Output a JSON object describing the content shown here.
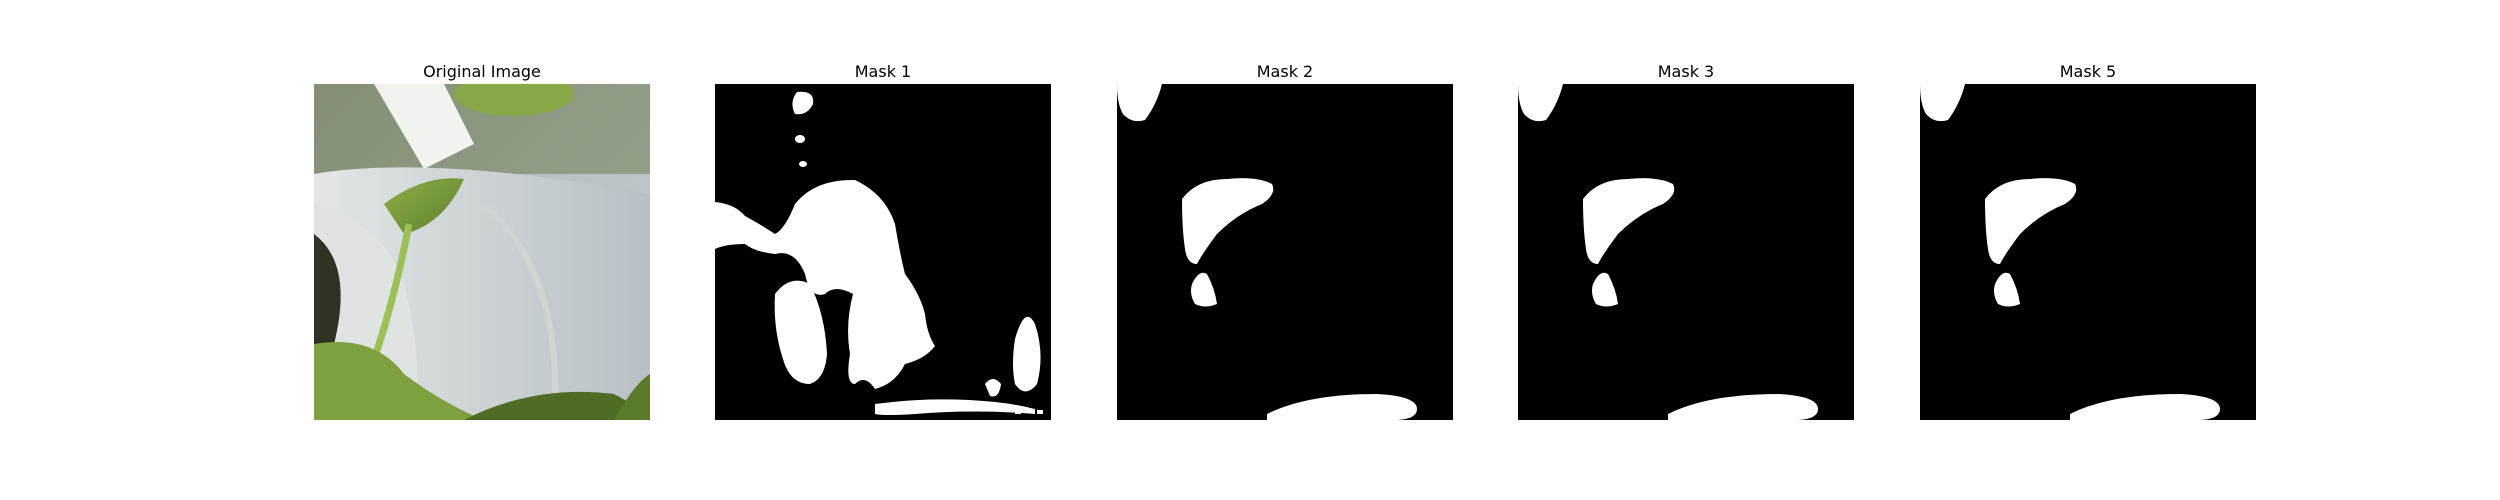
{
  "panels": [
    {
      "title": "Original Image",
      "kind": "photo"
    },
    {
      "title": "Mask 1",
      "kind": "mask"
    },
    {
      "title": "Mask 2",
      "kind": "mask"
    },
    {
      "title": "Mask 3",
      "kind": "mask"
    },
    {
      "title": "Mask 5",
      "kind": "mask"
    }
  ],
  "colors": {
    "mask_background": "#000000",
    "mask_foreground": "#ffffff",
    "page_background": "#ffffff"
  }
}
